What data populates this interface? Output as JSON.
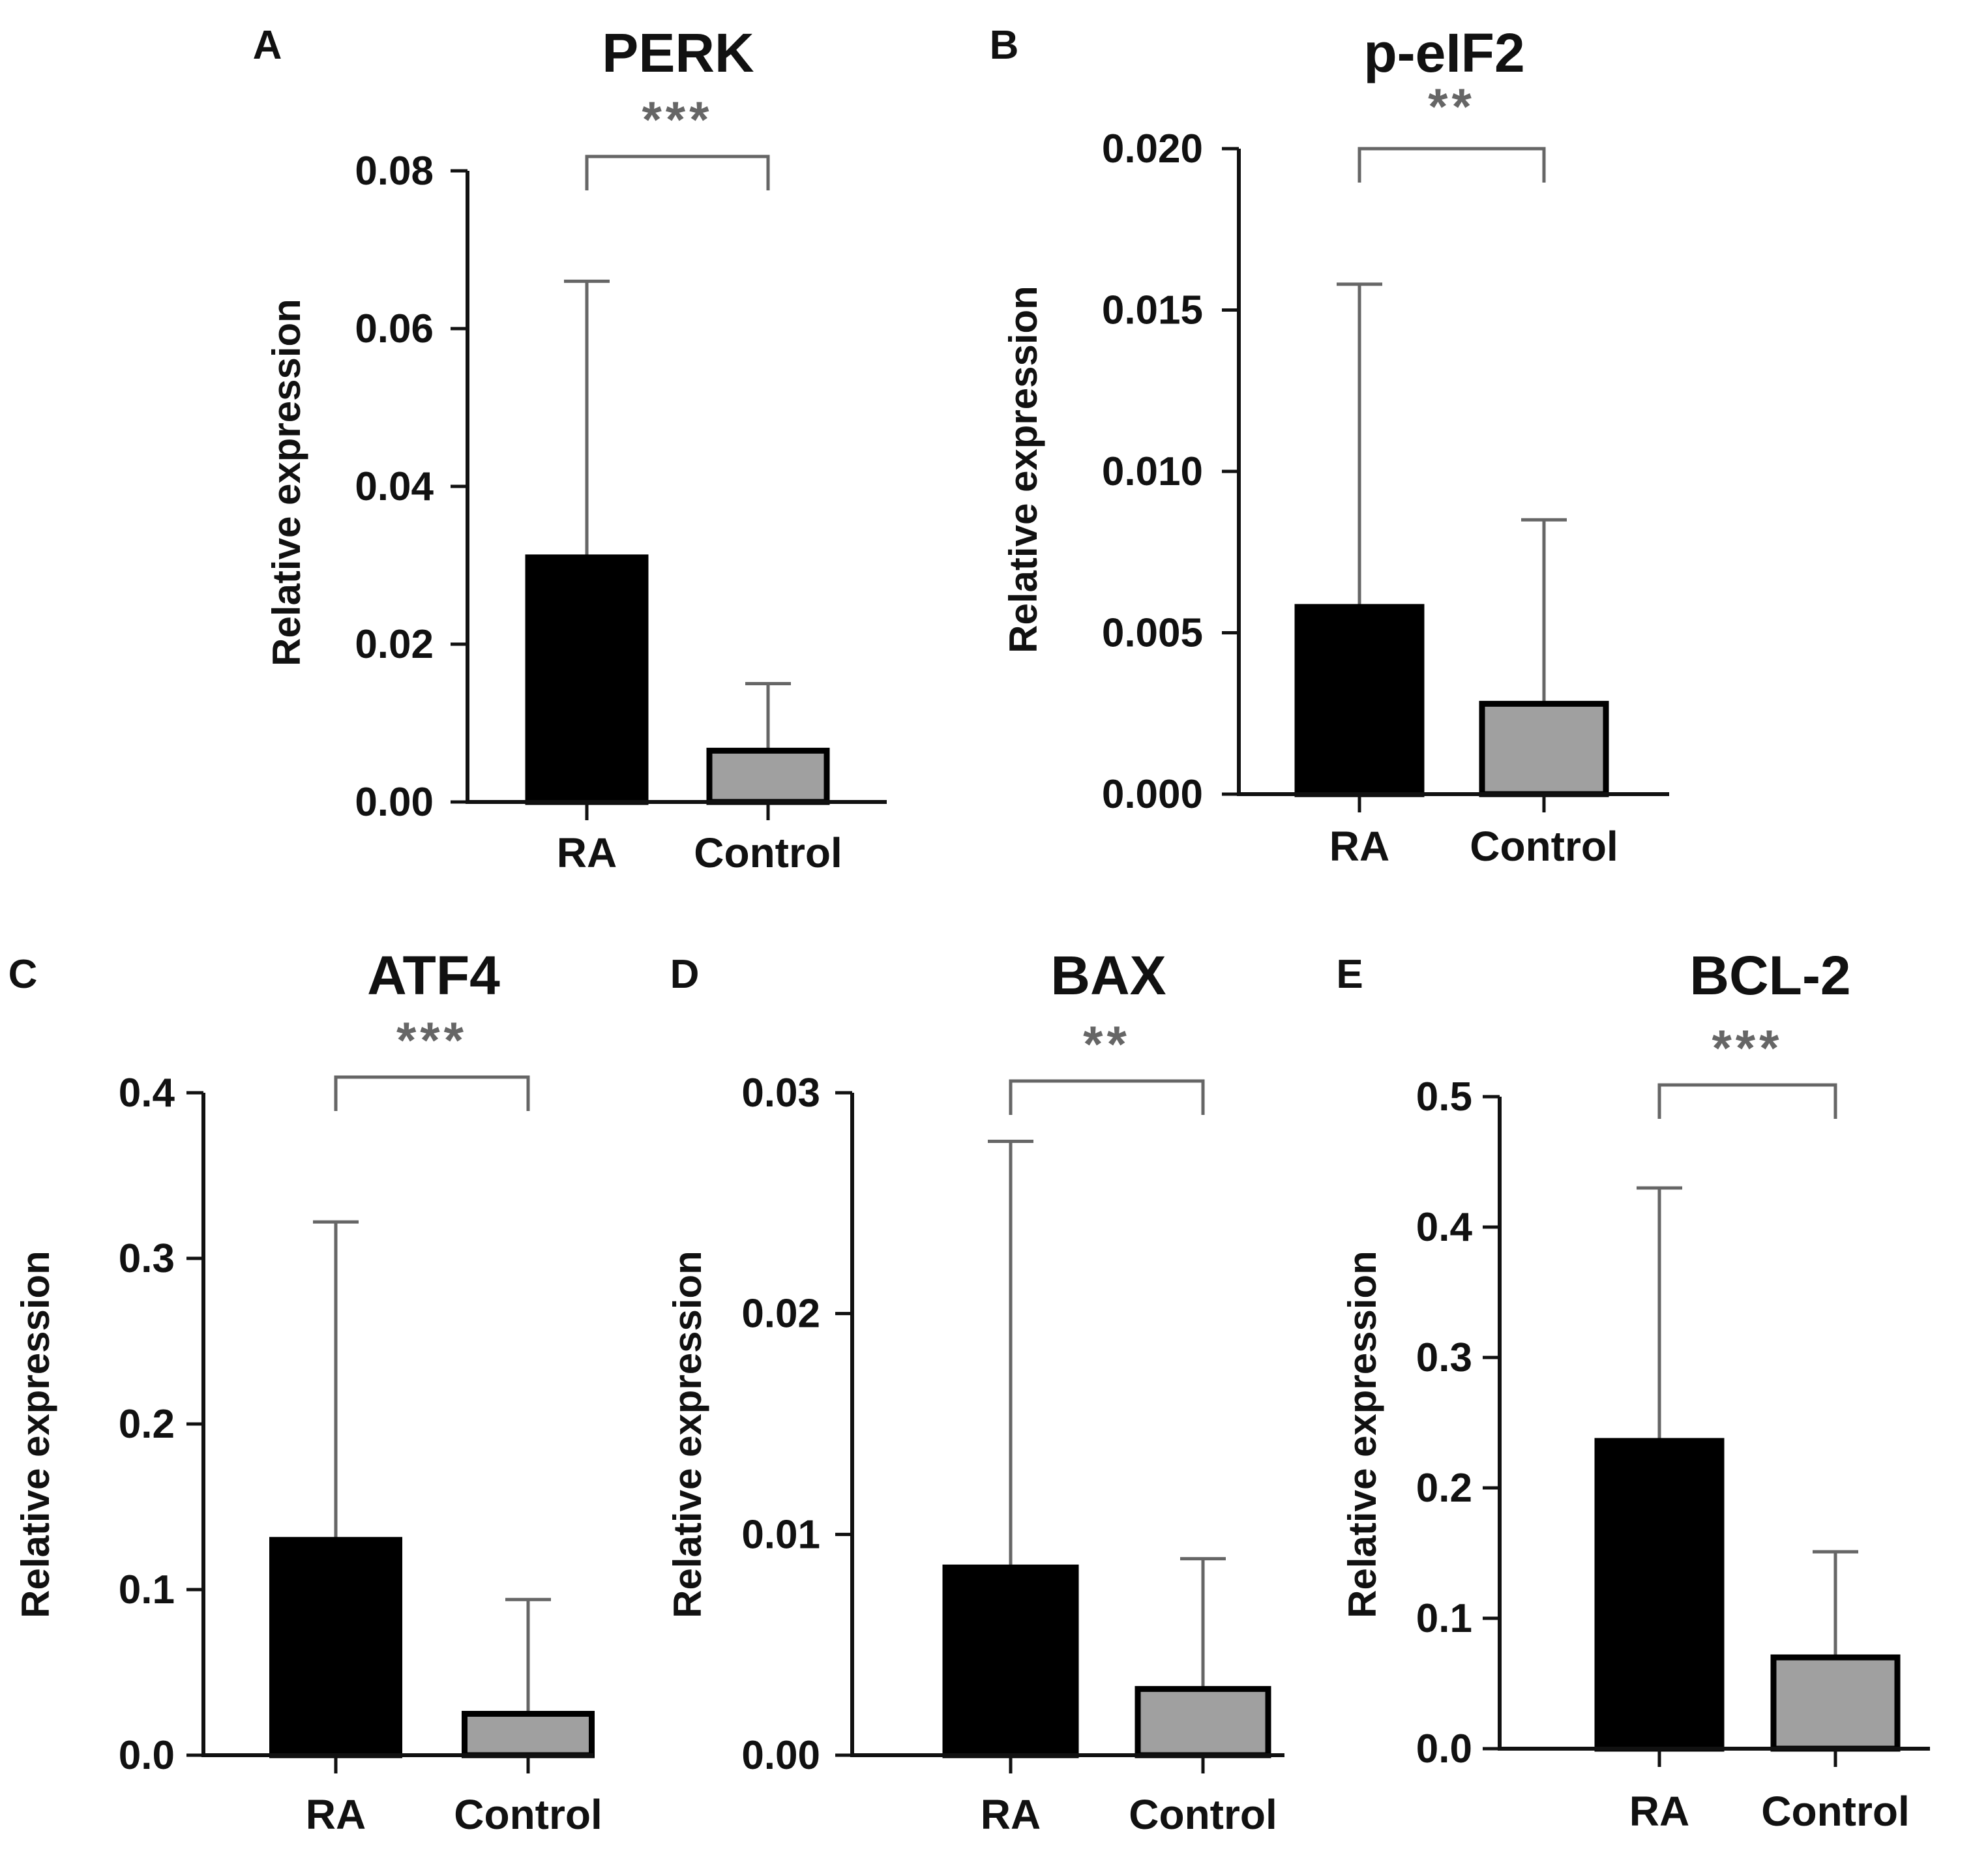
{
  "colors": {
    "ra_fill": "#000000",
    "control_fill": "#a0a0a0",
    "axis": "#111111",
    "error_bar": "#666666",
    "bracket": "#666666"
  },
  "chart_data": [
    {
      "panel": "A",
      "type": "bar",
      "title": "PERK",
      "xlabel": "",
      "ylabel": "Relative expression",
      "categories": [
        "RA",
        "Control"
      ],
      "values": [
        0.031,
        0.0065
      ],
      "error_upper": [
        0.066,
        0.015
      ],
      "ylim": [
        0,
        0.08
      ],
      "yticks": [
        0.0,
        0.02,
        0.04,
        0.06,
        0.08
      ],
      "ytick_labels": [
        "0.00",
        "0.02",
        "0.04",
        "0.06",
        "0.08"
      ],
      "significance": "***"
    },
    {
      "panel": "B",
      "type": "bar",
      "title": "p-eIF2",
      "xlabel": "",
      "ylabel": "Relative expression",
      "categories": [
        "RA",
        "Control"
      ],
      "values": [
        0.0058,
        0.0028
      ],
      "error_upper": [
        0.0158,
        0.0085
      ],
      "ylim": [
        0,
        0.02
      ],
      "yticks": [
        0.0,
        0.005,
        0.01,
        0.015,
        0.02
      ],
      "ytick_labels": [
        "0.000",
        "0.005",
        "0.010",
        "0.015",
        "0.020"
      ],
      "significance": "**"
    },
    {
      "panel": "C",
      "type": "bar",
      "title": "ATF4",
      "xlabel": "",
      "ylabel": "Relative expression",
      "categories": [
        "RA",
        "Control"
      ],
      "values": [
        0.13,
        0.025
      ],
      "error_upper": [
        0.322,
        0.094
      ],
      "ylim": [
        0,
        0.4
      ],
      "yticks": [
        0.0,
        0.1,
        0.2,
        0.3,
        0.4
      ],
      "ytick_labels": [
        "0.0",
        "0.1",
        "0.2",
        "0.3",
        "0.4"
      ],
      "significance": "***"
    },
    {
      "panel": "D",
      "type": "bar",
      "title": "BAX",
      "xlabel": "",
      "ylabel": "Relative expression",
      "categories": [
        "RA",
        "Control"
      ],
      "values": [
        0.0085,
        0.003
      ],
      "error_upper": [
        0.0278,
        0.0089
      ],
      "ylim": [
        0,
        0.03
      ],
      "yticks": [
        0.0,
        0.01,
        0.02,
        0.03
      ],
      "ytick_labels": [
        "0.00",
        "0.01",
        "0.02",
        "0.03"
      ],
      "significance": "**"
    },
    {
      "panel": "E",
      "type": "bar",
      "title": "BCL-2",
      "xlabel": "",
      "ylabel": "Relative expression",
      "categories": [
        "RA",
        "Control"
      ],
      "values": [
        0.236,
        0.07
      ],
      "error_upper": [
        0.43,
        0.151
      ],
      "ylim": [
        0,
        0.5
      ],
      "yticks": [
        0.0,
        0.1,
        0.2,
        0.3,
        0.4,
        0.5
      ],
      "ytick_labels": [
        "0.0",
        "0.1",
        "0.2",
        "0.3",
        "0.4",
        "0.5"
      ],
      "significance": "***"
    }
  ]
}
